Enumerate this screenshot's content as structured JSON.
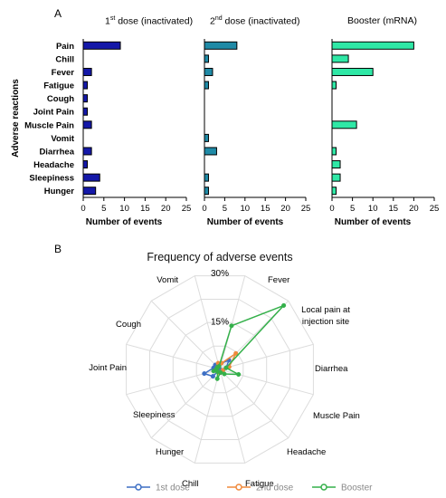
{
  "panel_labels": [
    "A",
    "B"
  ],
  "chart_data": [
    {
      "type": "bar",
      "orientation": "horizontal",
      "title_parts": [
        "1",
        "st",
        " dose (inactivated)"
      ],
      "categories": [
        "Pain",
        "Chill",
        "Fever",
        "Fatigue",
        "Cough",
        "Joint Pain",
        "Muscle Pain",
        "Vomit",
        "Diarrhea",
        "Headache",
        "Sleepiness",
        "Hunger"
      ],
      "values": [
        9,
        0,
        2,
        1,
        1,
        1,
        2,
        0,
        2,
        1,
        4,
        3
      ],
      "xlabel": "Number of events",
      "ylabel": "Adverse reactions",
      "xlim": [
        0,
        25
      ],
      "xticks": [
        0,
        5,
        10,
        15,
        20,
        25
      ],
      "color": "#1418a8"
    },
    {
      "type": "bar",
      "orientation": "horizontal",
      "title_parts": [
        "2",
        "nd",
        " dose (inactivated)"
      ],
      "categories": [
        "Pain",
        "Chill",
        "Fever",
        "Fatigue",
        "Cough",
        "Joint Pain",
        "Muscle Pain",
        "Vomit",
        "Diarrhea",
        "Headache",
        "Sleepiness",
        "Hunger"
      ],
      "values": [
        8,
        1,
        2,
        1,
        0,
        0,
        0,
        1,
        3,
        0,
        1,
        1
      ],
      "xlabel": "Number of events",
      "xlim": [
        0,
        25
      ],
      "xticks": [
        0,
        5,
        10,
        15,
        20,
        25
      ],
      "color": "#1f8aa6"
    },
    {
      "type": "bar",
      "orientation": "horizontal",
      "title_parts": [
        "Booster (mRNA)"
      ],
      "categories": [
        "Pain",
        "Chill",
        "Fever",
        "Fatigue",
        "Cough",
        "Joint Pain",
        "Muscle Pain",
        "Vomit",
        "Diarrhea",
        "Headache",
        "Sleepiness",
        "Hunger"
      ],
      "values": [
        20,
        4,
        10,
        1,
        0,
        0,
        6,
        0,
        1,
        2,
        2,
        1
      ],
      "xlabel": "Number of events",
      "xlim": [
        0,
        25
      ],
      "xticks": [
        0,
        5,
        10,
        15,
        20,
        25
      ],
      "color": "#2fe8a6"
    },
    {
      "type": "radar",
      "title": "Frequency of adverse events",
      "categories": [
        "Fever",
        "Local pain at injection site",
        "Diarrhea",
        "Muscle Pain",
        "Headache",
        "Fatigue",
        "Chill",
        "Hunger",
        "Sleepiness",
        "Joint Pain",
        "Cough",
        "Vomit"
      ],
      "rmax": 30,
      "rings": 4,
      "ring_labels": [
        {
          "value": 15,
          "label": "15%"
        },
        {
          "value": 30,
          "label": "30%"
        }
      ],
      "grid": true,
      "legend_position": "bottom",
      "series": [
        {
          "name": "1st dose",
          "color": "#3d6fc4",
          "values": [
            2,
            4,
            2,
            1,
            1,
            1,
            0,
            3,
            5,
            2,
            2,
            1
          ]
        },
        {
          "name": "2nd dose",
          "color": "#f08a3c",
          "values": [
            2,
            7,
            3,
            1,
            1,
            1,
            1,
            1,
            1,
            1,
            1,
            2
          ]
        },
        {
          "name": "Booster",
          "color": "#34b04a",
          "values": [
            14,
            28,
            2,
            6,
            2,
            1,
            3,
            1,
            2,
            1,
            1,
            1
          ]
        }
      ]
    }
  ]
}
